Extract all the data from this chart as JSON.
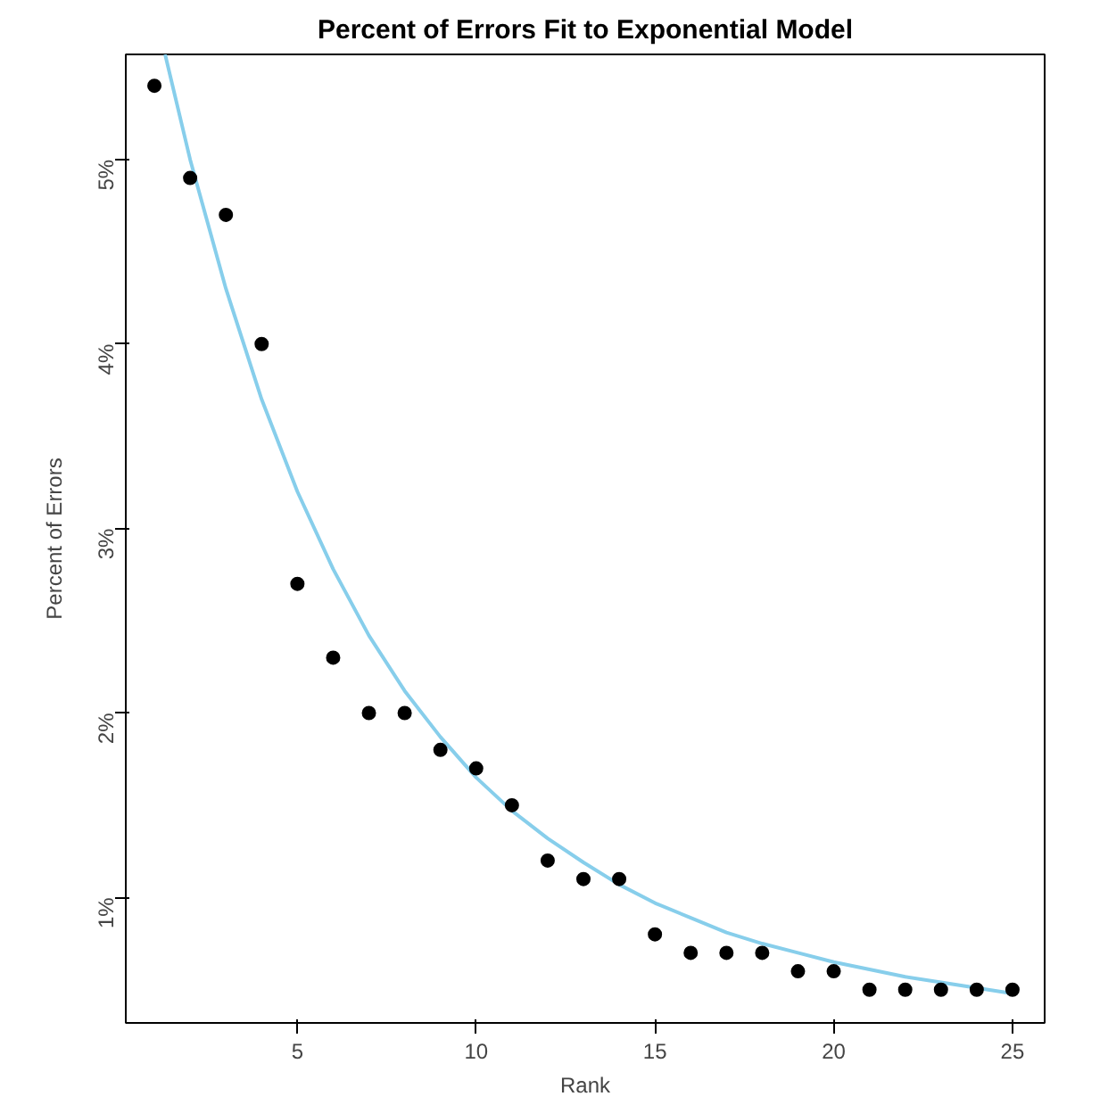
{
  "chart_data": {
    "type": "scatter",
    "title": "Percent of Errors Fit to Exponential Model",
    "xlabel": "Rank",
    "ylabel": "Percent of Errors",
    "xlim": [
      0.2,
      25.9
    ],
    "ylim": [
      0.32,
      5.57
    ],
    "xticks": [
      5,
      10,
      15,
      20,
      25
    ],
    "yticks": [
      {
        "value": 1,
        "label": "1%"
      },
      {
        "value": 2,
        "label": "2%"
      },
      {
        "value": 3,
        "label": "3%"
      },
      {
        "value": 4,
        "label": "4%"
      },
      {
        "value": 5,
        "label": "5%"
      }
    ],
    "grid": false,
    "marker": "circle",
    "series": [
      {
        "color": "#000000",
        "x": [
          1,
          2,
          3,
          4,
          5,
          6,
          7,
          8,
          9,
          10,
          11,
          12,
          13,
          14,
          15,
          16,
          17,
          18,
          19,
          20,
          21,
          22,
          23,
          24,
          25
        ],
        "values": [
          5.4,
          4.9,
          4.7,
          4.0,
          2.7,
          2.3,
          2.0,
          2.0,
          1.8,
          1.7,
          1.5,
          1.2,
          1.1,
          1.1,
          0.8,
          0.7,
          0.7,
          0.7,
          0.6,
          0.6,
          0.5,
          0.5,
          0.5,
          0.5,
          0.5
        ]
      },
      {
        "type": "line",
        "color": "#87ceeb",
        "line_style": "solid",
        "marker": "none",
        "x": [
          1.3,
          2,
          3,
          4,
          5,
          6,
          7,
          8,
          9,
          10,
          11,
          12,
          13,
          14,
          15,
          16,
          17,
          18,
          19,
          20,
          21,
          22,
          23,
          24,
          25
        ],
        "values": [
          5.57,
          5.0,
          4.3,
          3.7,
          3.2,
          2.78,
          2.42,
          2.12,
          1.87,
          1.65,
          1.47,
          1.32,
          1.19,
          1.07,
          0.97,
          0.89,
          0.81,
          0.75,
          0.7,
          0.65,
          0.61,
          0.57,
          0.54,
          0.51,
          0.48
        ]
      }
    ]
  }
}
